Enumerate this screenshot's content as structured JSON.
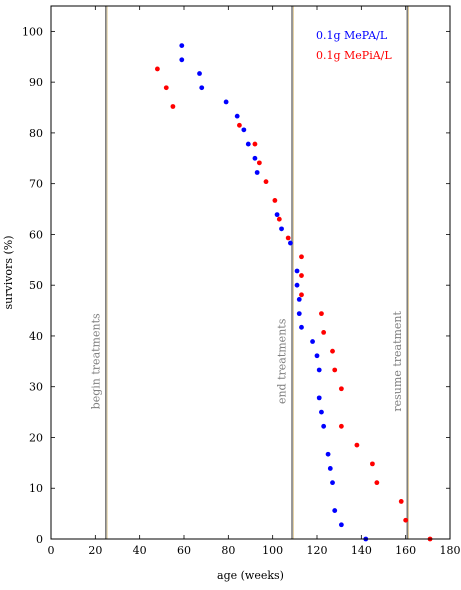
{
  "chart_data": {
    "type": "scatter",
    "xlabel": "age (weeks)",
    "ylabel": "survivors (%)",
    "xlim": [
      0,
      180
    ],
    "ylim": [
      0,
      105
    ],
    "xticks": [
      0,
      20,
      40,
      60,
      80,
      100,
      120,
      140,
      160,
      180
    ],
    "yticks": [
      0,
      10,
      20,
      30,
      40,
      50,
      60,
      70,
      80,
      90,
      100
    ],
    "grid": false,
    "legend_position": "top-right",
    "vertical_lines": [
      {
        "x": 25,
        "label": "begin treatments"
      },
      {
        "x": 109,
        "label": "end treatments"
      },
      {
        "x": 161,
        "label": "resume treatment"
      }
    ],
    "series": [
      {
        "name": "0.1g MePA/L",
        "color": "#0000ff",
        "points": [
          [
            59,
            97.2
          ],
          [
            59,
            94.4
          ],
          [
            67,
            91.7
          ],
          [
            68,
            88.9
          ],
          [
            79,
            86.1
          ],
          [
            84,
            83.3
          ],
          [
            87,
            80.6
          ],
          [
            89,
            77.8
          ],
          [
            92,
            75.0
          ],
          [
            93,
            72.2
          ],
          [
            102,
            63.9
          ],
          [
            104,
            61.1
          ],
          [
            108,
            58.3
          ],
          [
            111,
            52.8
          ],
          [
            111,
            50.0
          ],
          [
            112,
            47.2
          ],
          [
            112,
            44.4
          ],
          [
            113,
            41.7
          ],
          [
            118,
            38.9
          ],
          [
            120,
            36.1
          ],
          [
            121,
            33.3
          ],
          [
            121,
            27.8
          ],
          [
            122,
            25.0
          ],
          [
            123,
            22.2
          ],
          [
            125,
            16.7
          ],
          [
            126,
            13.9
          ],
          [
            127,
            11.1
          ],
          [
            128,
            5.6
          ],
          [
            131,
            2.8
          ],
          [
            142,
            0.0
          ]
        ]
      },
      {
        "name": "0.1g MePiA/L",
        "color": "#ff0000",
        "points": [
          [
            48,
            92.6
          ],
          [
            52,
            88.9
          ],
          [
            55,
            85.2
          ],
          [
            85,
            81.5
          ],
          [
            92,
            77.8
          ],
          [
            94,
            74.1
          ],
          [
            97,
            70.4
          ],
          [
            101,
            66.7
          ],
          [
            103,
            63.0
          ],
          [
            107,
            59.3
          ],
          [
            113,
            55.6
          ],
          [
            113,
            51.9
          ],
          [
            113,
            48.1
          ],
          [
            122,
            44.4
          ],
          [
            123,
            40.7
          ],
          [
            127,
            37.0
          ],
          [
            128,
            33.3
          ],
          [
            131,
            29.6
          ],
          [
            131,
            22.2
          ],
          [
            138,
            18.5
          ],
          [
            145,
            14.8
          ],
          [
            147,
            11.1
          ],
          [
            158,
            7.4
          ],
          [
            160,
            3.7
          ],
          [
            171,
            0.0
          ]
        ]
      }
    ]
  }
}
